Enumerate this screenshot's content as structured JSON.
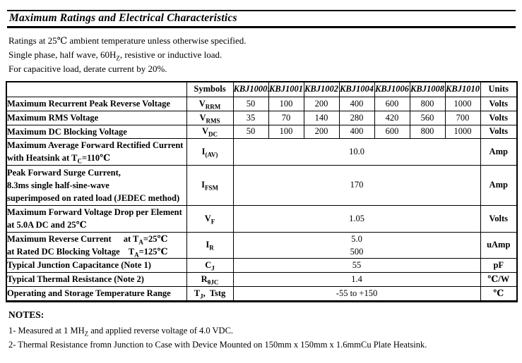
{
  "title": "Maximum Ratings and Electrical Characteristics",
  "conditions": [
    "Ratings at 25℃ ambient temperature unless otherwise specified.",
    "Single phase, half wave, 60H<sub>Z</sub>, resistive or inductive load.",
    "For capacitive load, derate current by 20%."
  ],
  "table": {
    "header": {
      "symbols": "Symbols",
      "parts": [
        "KBJ10005",
        "KBJ1001",
        "KBJ1002",
        "KBJ1004",
        "KBJ1006",
        "KBJ1008",
        "KBJ1010"
      ],
      "units": "Units"
    },
    "rows": [
      {
        "desc": "Maximum Recurrent Peak Reverse Voltage",
        "symbol": "V<sub>RRM</sub>",
        "values": [
          "50",
          "100",
          "200",
          "400",
          "600",
          "800",
          "1000"
        ],
        "unit": "Volts"
      },
      {
        "desc": "Maximum RMS Voltage",
        "symbol": "V<sub>RMS</sub>",
        "values": [
          "35",
          "70",
          "140",
          "280",
          "420",
          "560",
          "700"
        ],
        "unit": "Volts"
      },
      {
        "desc": "Maximum DC Blocking Voltage",
        "symbol": "V<sub>DC</sub>",
        "values": [
          "50",
          "100",
          "200",
          "400",
          "600",
          "800",
          "1000"
        ],
        "unit": "Volts"
      },
      {
        "desc_lines": [
          "Maximum Average Forward Rectified Current",
          "with Heatsink at T<sub>C</sub>=110℃"
        ],
        "symbol": "I<sub>(AV)</sub>",
        "value": "10.0",
        "unit": "Amp"
      },
      {
        "desc_lines": [
          "Peak Forward Surge Current,",
          "8.3ms single half-sine-wave",
          "superimposed on rated load (JEDEC method)"
        ],
        "symbol": "I<sub>FSM</sub>",
        "value": "170",
        "unit": "Amp"
      },
      {
        "desc_lines": [
          "Maximum Forward Voltage Drop per Element",
          "at 5.0A DC and 25℃"
        ],
        "symbol": "V<sub>F</sub>",
        "value": "1.05",
        "unit": "Volts"
      },
      {
        "line1_left": "Maximum Reverse Current",
        "line1_right": "at T<sub>A</sub>=25℃",
        "line2_left": "at Rated DC Blocking Voltage",
        "line2_right": "T<sub>A</sub>=125℃",
        "symbol": "I<sub>R</sub>",
        "values": [
          "5.0",
          "500"
        ],
        "unit": "uAmp"
      },
      {
        "desc": "Typical Junction Capacitance (Note 1)",
        "symbol": "C<sub>J</sub>",
        "value": "55",
        "unit": "pF"
      },
      {
        "desc": "Typical Thermal Resistance (Note 2)",
        "symbol": "R<sub>θJC</sub>",
        "value": "1.4",
        "unit": "℃/W"
      },
      {
        "desc": "Operating and Storage Temperature Range",
        "symbol": "T<sub>J</sub>,&nbsp; Tstg",
        "value": "-55 to +150",
        "unit": "℃"
      }
    ]
  },
  "notes": {
    "heading": "NOTES:",
    "items": [
      "1- Measured at 1 MH<sub>Z</sub> and applied reverse voltage of 4.0 VDC.",
      "2- Thermal Resistance fromn Junction to Case with Device Mounted on 150mm x 150mm x 1.6mmCu Plate Heatsink."
    ]
  }
}
